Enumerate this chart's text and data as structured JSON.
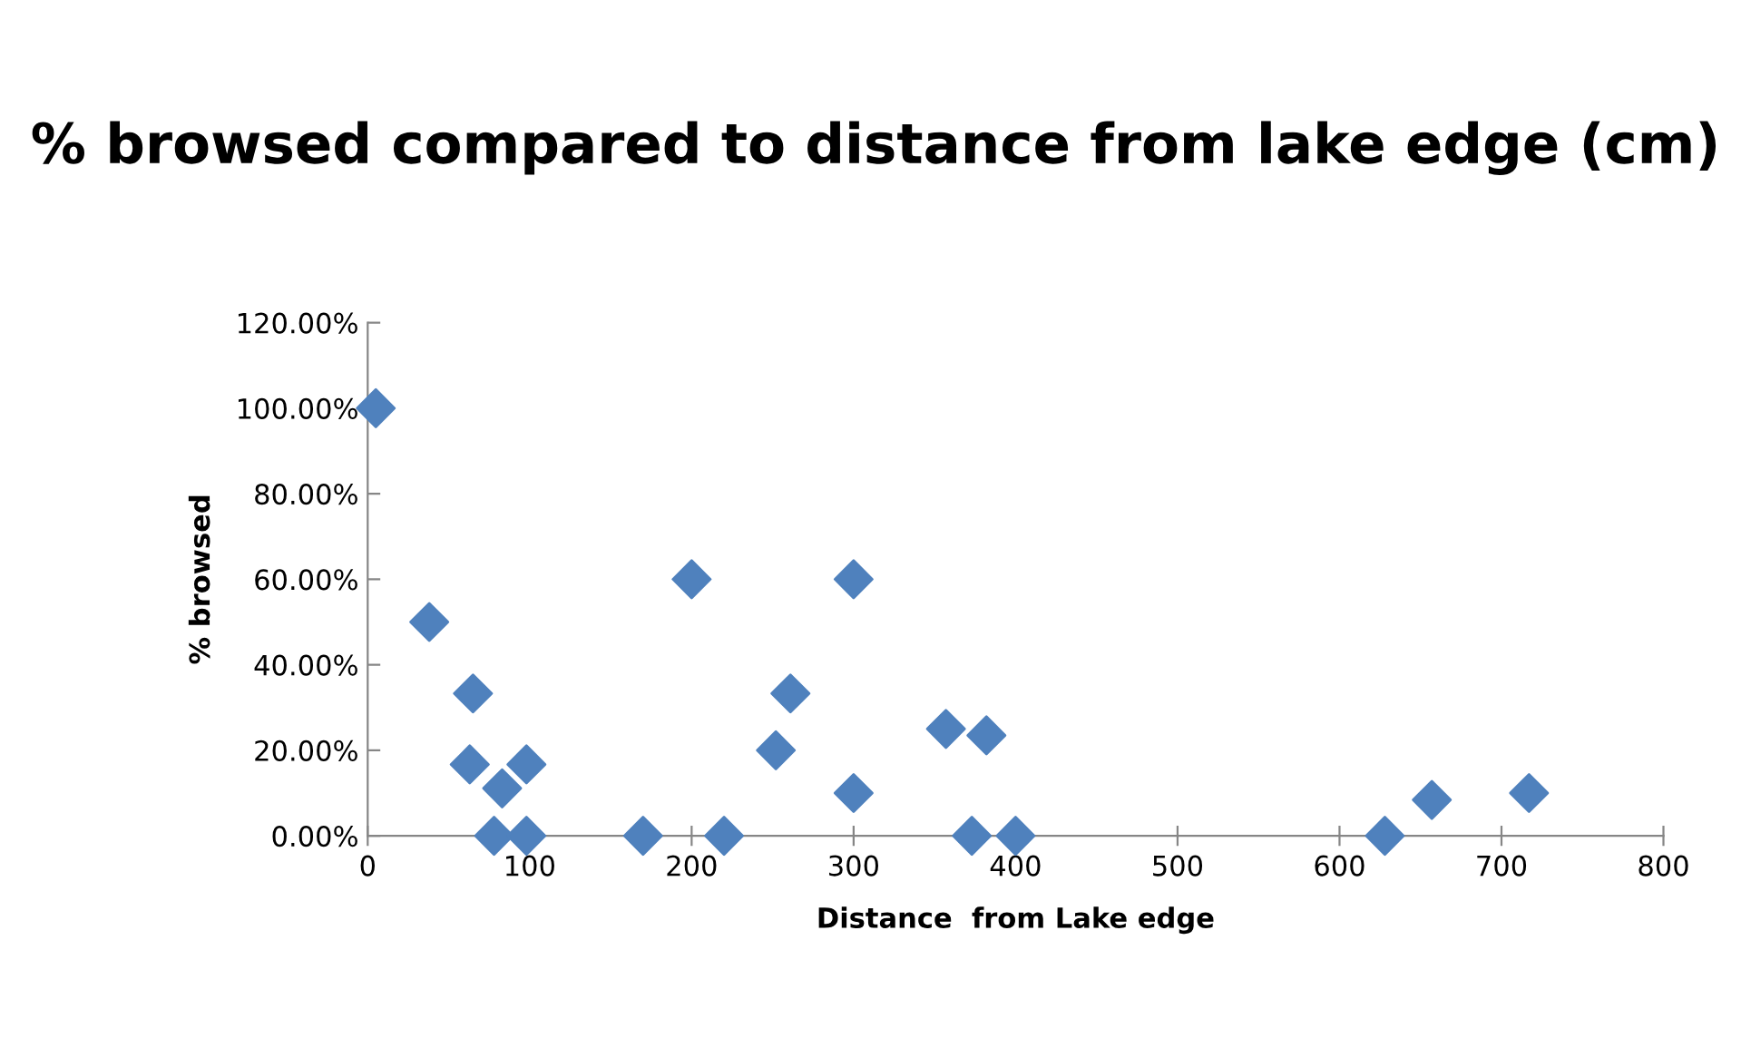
{
  "chart_data": {
    "type": "scatter",
    "title": "% browsed compared to distance from lake edge (cm)",
    "xlabel": "Distance  from Lake edge",
    "ylabel": "% browsed",
    "series": [
      {
        "color": "#4f81bd",
        "x": [
          5,
          38,
          65,
          63,
          83,
          98,
          78,
          98,
          170,
          200,
          220,
          252,
          261,
          300,
          300,
          357,
          382,
          373,
          400,
          628,
          657,
          717
        ],
        "values": [
          100,
          50,
          33.3,
          16.7,
          11.1,
          16.7,
          0,
          0,
          0,
          60,
          0,
          20,
          33.3,
          60,
          10,
          25,
          23.5,
          0,
          0,
          0,
          8.4,
          10
        ]
      }
    ],
    "xlim": [
      0,
      800
    ],
    "xticks": [
      0,
      100,
      200,
      300,
      400,
      500,
      600,
      700,
      800
    ],
    "ylim": [
      0,
      120
    ],
    "yticks": [
      {
        "value": 0,
        "label": "0.00%"
      },
      {
        "value": 20,
        "label": "20.00%"
      },
      {
        "value": 40,
        "label": "40.00%"
      },
      {
        "value": 60,
        "label": "60.00%"
      },
      {
        "value": 80,
        "label": "80.00%"
      },
      {
        "value": 100,
        "label": "100.00%"
      },
      {
        "value": 120,
        "label": "120.00%"
      }
    ],
    "marker": "diamond",
    "grid": false,
    "legend": false
  }
}
